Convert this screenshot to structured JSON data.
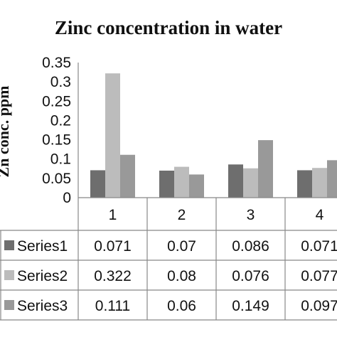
{
  "chart_data": {
    "type": "bar",
    "title": "Zinc concentration in water",
    "ylabel": "Zn conc. ppm",
    "xlabel": "",
    "categories": [
      "1",
      "2",
      "3",
      "4"
    ],
    "ylim": [
      0,
      0.35
    ],
    "yticks": [
      "0",
      "0.05",
      "0.1",
      "0.15",
      "0.2",
      "0.25",
      "0.3",
      "0.35"
    ],
    "grid": false,
    "legend": "data-table",
    "series": [
      {
        "name": "Series1",
        "color": "#6e6e6e",
        "values": [
          0.071,
          0.07,
          0.086,
          0.071
        ],
        "labels": [
          "0.071",
          "0.07",
          "0.086",
          "0.071"
        ]
      },
      {
        "name": "Series2",
        "color": "#bcbcbc",
        "values": [
          0.322,
          0.08,
          0.076,
          0.077
        ],
        "labels": [
          "0.322",
          "0.08",
          "0.076",
          "0.077"
        ]
      },
      {
        "name": "Series3",
        "color": "#999999",
        "values": [
          0.111,
          0.06,
          0.149,
          0.097
        ],
        "labels": [
          "0.111",
          "0.06",
          "0.149",
          "0.097"
        ]
      }
    ]
  }
}
